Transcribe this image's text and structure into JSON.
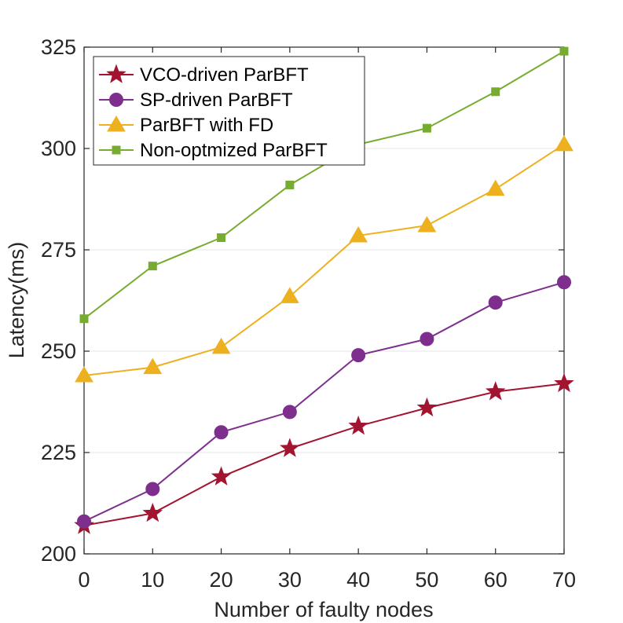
{
  "chart_data": {
    "type": "line",
    "title": "",
    "xlabel": "Number of faulty nodes",
    "ylabel": "Latency(ms)",
    "x": [
      0,
      10,
      20,
      30,
      40,
      50,
      60,
      70
    ],
    "xlim": [
      0,
      70
    ],
    "ylim": [
      200,
      325
    ],
    "xticks": [
      "0",
      "10",
      "20",
      "30",
      "40",
      "50",
      "60",
      "70"
    ],
    "yticks": [
      "200",
      "225",
      "250",
      "275",
      "300",
      "325"
    ],
    "grid": "horizontal",
    "legend_position": "top-left",
    "series": [
      {
        "name": "VCO-driven ParBFT",
        "marker": "star",
        "color": "#a2142f",
        "values": [
          207,
          210,
          219,
          226,
          231.5,
          236,
          240,
          242
        ]
      },
      {
        "name": "SP-driven ParBFT",
        "marker": "circle",
        "color": "#7e2f8e",
        "values": [
          208,
          216,
          230,
          235,
          249,
          253,
          262,
          267
        ]
      },
      {
        "name": "ParBFT with FD",
        "marker": "triangle",
        "color": "#edb120",
        "values": [
          244,
          246,
          251,
          263.5,
          278.5,
          281,
          290,
          301
        ]
      },
      {
        "name": "Non-optmized ParBFT",
        "marker": "square",
        "color": "#77ac30",
        "values": [
          258,
          271,
          278,
          291,
          301,
          305,
          314,
          324
        ]
      }
    ]
  }
}
